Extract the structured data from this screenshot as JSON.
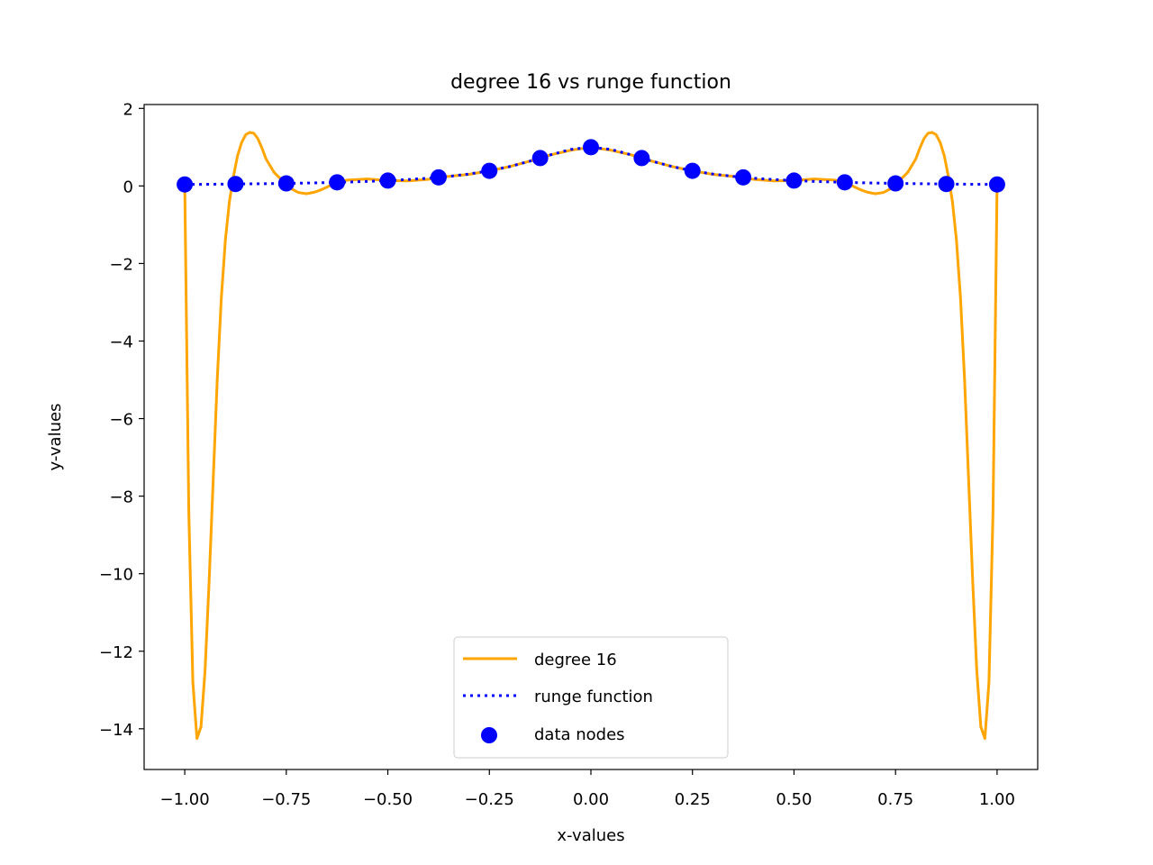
{
  "chart_data": {
    "type": "line",
    "title": "degree 16 vs runge function",
    "xlabel": "x-values",
    "ylabel": "y-values",
    "xlim": [
      -1.1,
      1.1
    ],
    "ylim": [
      -15.05,
      2.1
    ],
    "xticks": [
      -1.0,
      -0.75,
      -0.5,
      -0.25,
      0.0,
      0.25,
      0.5,
      0.75,
      1.0
    ],
    "xtick_labels": [
      "−1.00",
      "−0.75",
      "−0.50",
      "−0.25",
      "0.00",
      "0.25",
      "0.50",
      "0.75",
      "1.00"
    ],
    "yticks": [
      2,
      0,
      -2,
      -4,
      -6,
      -8,
      -10,
      -12,
      -14
    ],
    "ytick_labels": [
      "2",
      "0",
      "−2",
      "−4",
      "−6",
      "−8",
      "−10",
      "−12",
      "−14"
    ],
    "grid": false,
    "legend_position": "lower center",
    "series": [
      {
        "name": "degree 16",
        "kind": "line",
        "color": "#ffa500",
        "x": [
          -1.0,
          -0.99,
          -0.98,
          -0.97,
          -0.96,
          -0.95,
          -0.94,
          -0.93,
          -0.92,
          -0.91,
          -0.9,
          -0.89,
          -0.88,
          -0.87,
          -0.86,
          -0.85,
          -0.84,
          -0.83,
          -0.82,
          -0.81,
          -0.8,
          -0.78,
          -0.76,
          -0.75,
          -0.74,
          -0.72,
          -0.7,
          -0.68,
          -0.66,
          -0.64,
          -0.62,
          -0.6,
          -0.55,
          -0.5,
          -0.45,
          -0.4,
          -0.375,
          -0.3,
          -0.25,
          -0.2,
          -0.15,
          -0.125,
          -0.1,
          -0.05,
          0.0,
          0.05,
          0.1,
          0.125,
          0.15,
          0.2,
          0.25,
          0.3,
          0.375,
          0.4,
          0.45,
          0.5,
          0.55,
          0.6,
          0.62,
          0.64,
          0.66,
          0.68,
          0.7,
          0.72,
          0.74,
          0.75,
          0.76,
          0.78,
          0.8,
          0.81,
          0.82,
          0.83,
          0.84,
          0.85,
          0.86,
          0.87,
          0.88,
          0.89,
          0.9,
          0.91,
          0.92,
          0.93,
          0.94,
          0.95,
          0.96,
          0.97,
          0.98,
          0.99,
          1.0
        ],
        "y": [
          0.04,
          -8.4,
          -12.8,
          -14.25,
          -13.95,
          -12.5,
          -10.2,
          -7.6,
          -5.0,
          -2.9,
          -1.4,
          -0.4,
          0.25,
          0.78,
          1.12,
          1.32,
          1.38,
          1.36,
          1.22,
          0.98,
          0.7,
          0.35,
          0.14,
          0.06,
          -0.06,
          -0.17,
          -0.2,
          -0.16,
          -0.08,
          0.02,
          0.1,
          0.15,
          0.18,
          0.14,
          0.13,
          0.17,
          0.22,
          0.3,
          0.39,
          0.5,
          0.64,
          0.72,
          0.8,
          0.92,
          1.0,
          0.92,
          0.8,
          0.72,
          0.64,
          0.5,
          0.39,
          0.3,
          0.22,
          0.17,
          0.13,
          0.14,
          0.18,
          0.15,
          0.1,
          0.02,
          -0.08,
          -0.16,
          -0.2,
          -0.17,
          -0.06,
          0.06,
          0.14,
          0.35,
          0.7,
          0.98,
          1.22,
          1.36,
          1.38,
          1.32,
          1.12,
          0.78,
          0.25,
          -0.4,
          -1.4,
          -2.9,
          -5.0,
          -7.6,
          -10.2,
          -12.5,
          -13.95,
          -14.25,
          -12.8,
          -8.4,
          0.04
        ]
      },
      {
        "name": "runge function",
        "kind": "line",
        "style": "dotted",
        "color": "#0000ff",
        "x": [
          -1.0,
          -0.9,
          -0.8,
          -0.75,
          -0.7,
          -0.65,
          -0.6,
          -0.55,
          -0.5,
          -0.45,
          -0.4,
          -0.35,
          -0.3,
          -0.25,
          -0.2,
          -0.15,
          -0.1,
          -0.05,
          0.0,
          0.05,
          0.1,
          0.15,
          0.2,
          0.25,
          0.3,
          0.35,
          0.4,
          0.45,
          0.5,
          0.55,
          0.6,
          0.65,
          0.7,
          0.75,
          0.8,
          0.9,
          1.0
        ],
        "y": [
          0.038,
          0.047,
          0.059,
          0.066,
          0.075,
          0.086,
          0.1,
          0.117,
          0.138,
          0.165,
          0.2,
          0.246,
          0.308,
          0.39,
          0.5,
          0.64,
          0.8,
          0.941,
          1.0,
          0.941,
          0.8,
          0.64,
          0.5,
          0.39,
          0.308,
          0.246,
          0.2,
          0.165,
          0.138,
          0.117,
          0.1,
          0.086,
          0.075,
          0.066,
          0.059,
          0.047,
          0.038
        ]
      },
      {
        "name": "data nodes",
        "kind": "scatter",
        "color": "#0000ff",
        "x": [
          -1.0,
          -0.875,
          -0.75,
          -0.625,
          -0.5,
          -0.375,
          -0.25,
          -0.125,
          0.0,
          0.125,
          0.25,
          0.375,
          0.5,
          0.625,
          0.75,
          0.875,
          1.0
        ],
        "y": [
          0.038,
          0.05,
          0.066,
          0.093,
          0.138,
          0.221,
          0.39,
          0.719,
          1.0,
          0.719,
          0.39,
          0.221,
          0.138,
          0.093,
          0.066,
          0.05,
          0.038
        ]
      }
    ]
  }
}
